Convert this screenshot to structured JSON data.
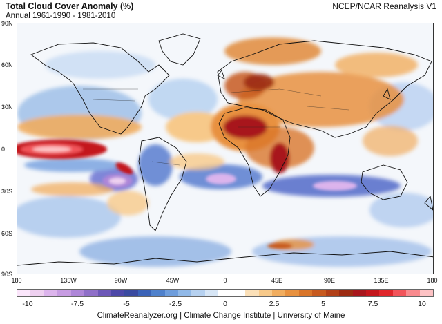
{
  "header": {
    "title": "Total Cloud Cover Anomaly (%)",
    "subtitle": "Annual 1961-1990 - 1981-2010",
    "source": "NCEP/NCAR Reanalysis V1"
  },
  "axes": {
    "lat_labels": [
      "90N",
      "60N",
      "30N",
      "0",
      "30S",
      "60S",
      "90S"
    ],
    "lon_labels": [
      "180",
      "135W",
      "90W",
      "45W",
      "0",
      "45E",
      "90E",
      "135E",
      "180"
    ]
  },
  "colorbar": {
    "labels": [
      "-10",
      "-7.5",
      "-5",
      "-2.5",
      "0",
      "2.5",
      "5",
      "7.5",
      "10"
    ],
    "colors": [
      "#fbe6fb",
      "#eed0f0",
      "#dcb4ec",
      "#c79ce2",
      "#ae86d8",
      "#8f6fc8",
      "#6d58b8",
      "#4d48a8",
      "#3a4aa0",
      "#3b63b8",
      "#4f81cc",
      "#6e9ddc",
      "#91b9e8",
      "#b6d1f0",
      "#d7e6f6",
      "#ffffff",
      "#ffffff",
      "#fbe0b8",
      "#f7c98a",
      "#f1ad5f",
      "#e8913f",
      "#d9752a",
      "#c75a1f",
      "#b24018",
      "#9c2b12",
      "#a8161c",
      "#c4161c",
      "#e0262b",
      "#f2545a",
      "#f98a8e",
      "#fdc2c4"
    ]
  },
  "footer": {
    "credit": "ClimateReanalyzer.org | Climate Change Institute | University of Maine"
  }
}
